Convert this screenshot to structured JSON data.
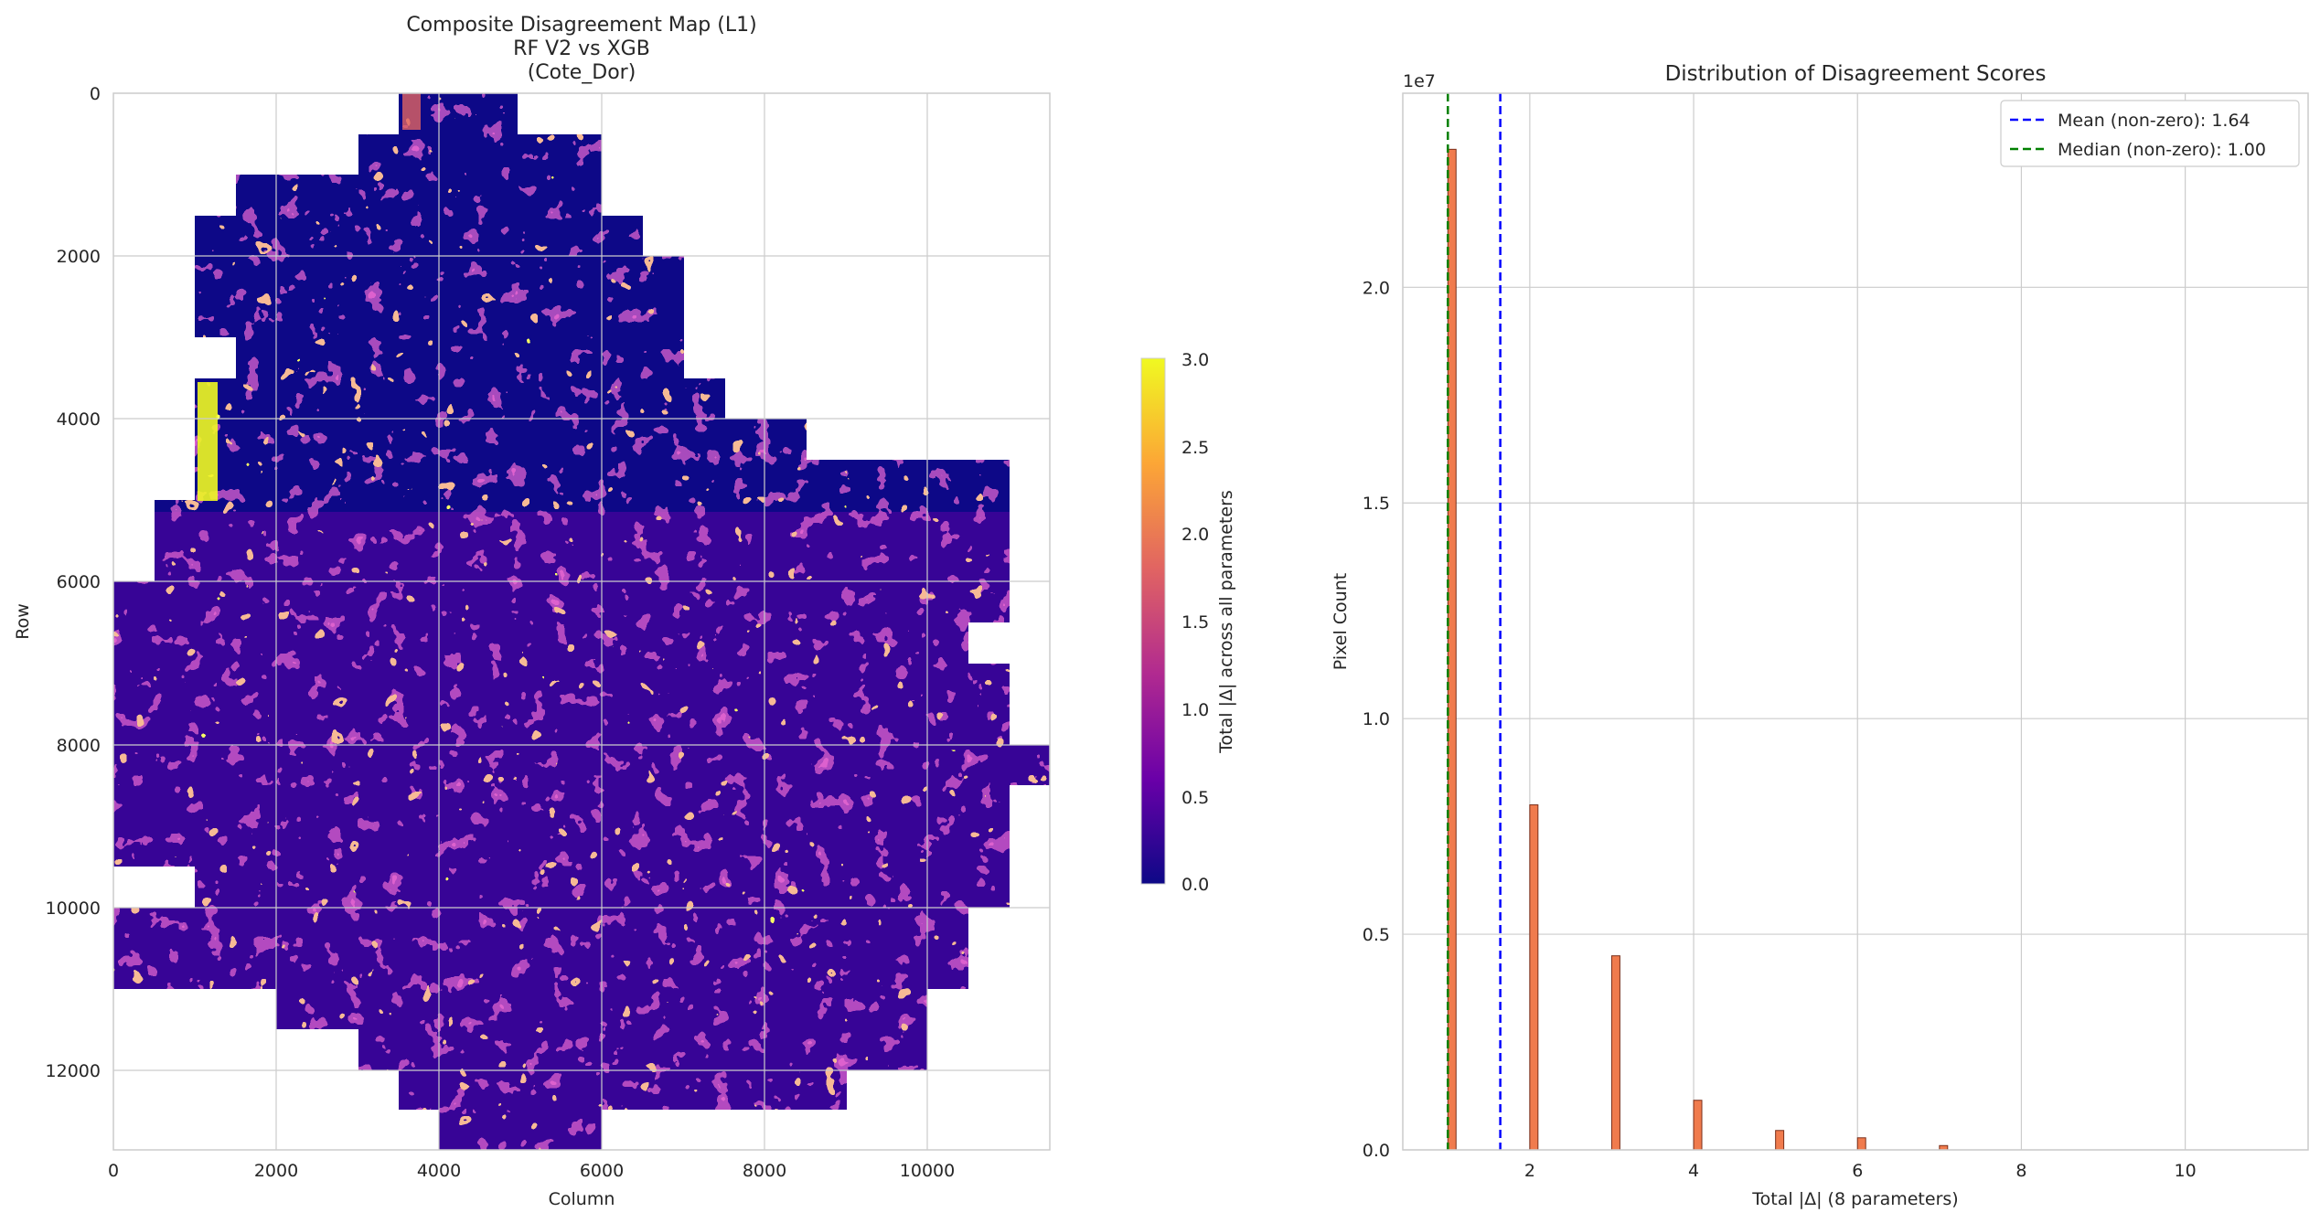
{
  "colors": {
    "grid": "#cccccc",
    "axis": "#cccccc",
    "text": "#262626",
    "bar_fill": "#f07b4d",
    "bar_edge": "#7a2f1a",
    "mean_line": "#0000ff",
    "median_line": "#008000",
    "map_base": "#0d0887",
    "cmap": [
      "#0d0887",
      "#6a00a8",
      "#b12a90",
      "#e16462",
      "#fca636",
      "#f0f921"
    ]
  },
  "map_panel": {
    "title_lines": [
      "Composite Disagreement Map (L1)",
      "RF V2 vs XGB",
      "(Cote_Dor)"
    ],
    "xlabel": "Column",
    "ylabel": "Row",
    "x_ticks": [
      "0",
      "2000",
      "4000",
      "6000",
      "8000",
      "10000"
    ],
    "y_ticks": [
      "0",
      "2000",
      "4000",
      "6000",
      "8000",
      "10000",
      "12000"
    ],
    "colorbar": {
      "label": "Total |Δ| across all parameters",
      "ticks": [
        "0.0",
        "0.5",
        "1.0",
        "1.5",
        "2.0",
        "2.5",
        "3.0"
      ],
      "min": 0,
      "max": 3
    }
  },
  "chart_data": [
    {
      "type": "heatmap",
      "title": "Composite Disagreement Map (L1)\nRF V2 vs XGB\n(Cote_Dor)",
      "xlabel": "Column",
      "ylabel": "Row",
      "xlim": [
        0,
        11500
      ],
      "ylim": [
        13000,
        0
      ],
      "colorbar_range": [
        0,
        3
      ],
      "colorbar_label": "Total |Δ| across all parameters",
      "colormap": "plasma",
      "grid": true
    },
    {
      "type": "bar",
      "title": "Distribution of Disagreement Scores",
      "xlabel": "Total |Δ| (8 parameters)",
      "ylabel": "Pixel Count",
      "y_scale_label": "1e7",
      "xlim": [
        0.45,
        11.5
      ],
      "ylim": [
        0,
        2.45
      ],
      "x_ticks": [
        "2",
        "4",
        "6",
        "8",
        "10"
      ],
      "y_ticks": [
        "0.0",
        "0.5",
        "1.0",
        "1.5",
        "2.0"
      ],
      "x": [
        1,
        2,
        3,
        4,
        5,
        6,
        7
      ],
      "values": [
        2.32,
        0.8,
        0.45,
        0.115,
        0.045,
        0.028,
        0.01
      ],
      "reference_lines": [
        {
          "name": "Mean (non-zero): 1.64",
          "x": 1.64,
          "color": "#0000ff"
        },
        {
          "name": "Median (non-zero): 1.00",
          "x": 1.0,
          "color": "#008000"
        }
      ],
      "legend_position": "upper right",
      "grid": true
    }
  ]
}
